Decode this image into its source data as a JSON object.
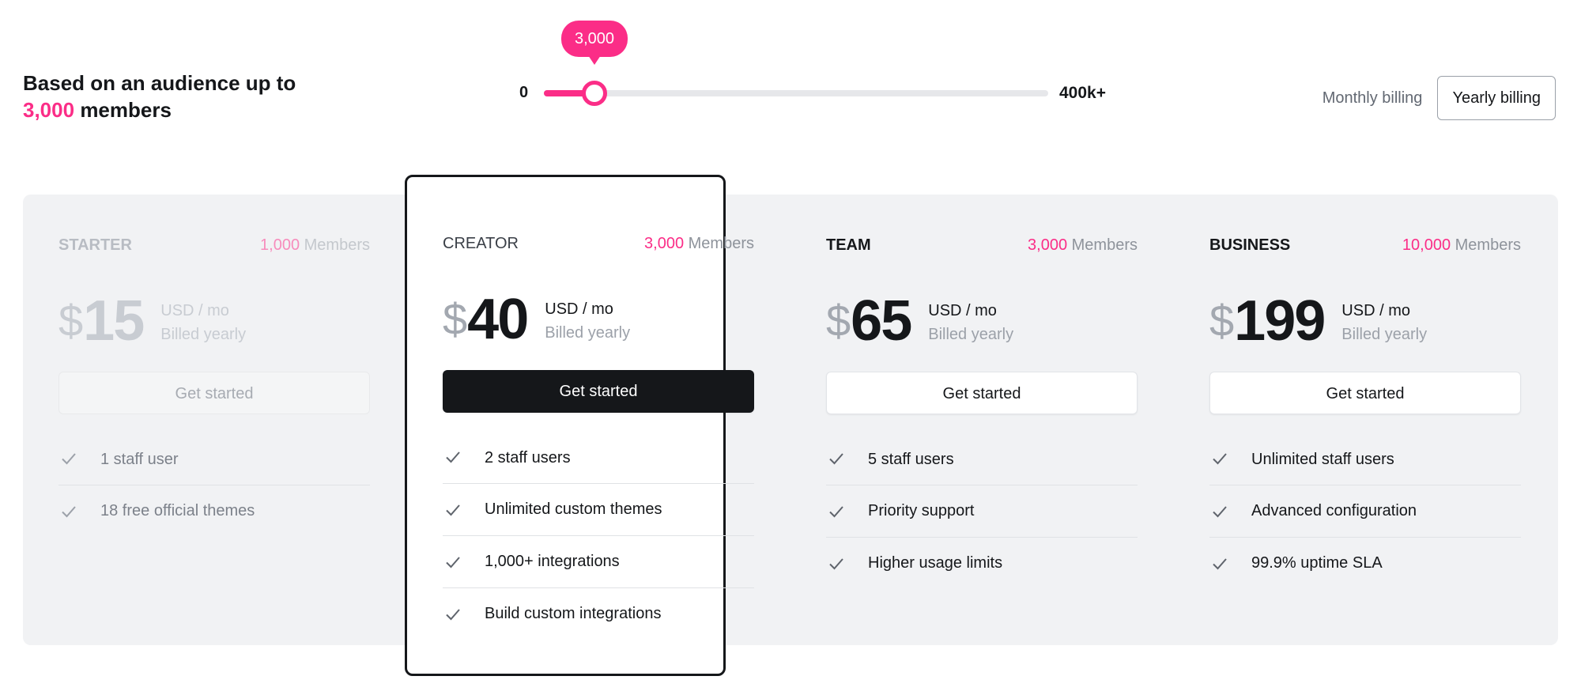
{
  "header": {
    "audience_text": "Based on an audience up to",
    "audience_value": "3,000",
    "audience_suffix": "members"
  },
  "slider": {
    "min_label": "0",
    "max_label": "400k+",
    "value_label": "3,000",
    "position_fraction": 0.1,
    "accent_color": "#fb2d87"
  },
  "billing": {
    "monthly_label": "Monthly billing",
    "yearly_label": "Yearly billing",
    "selected": "yearly"
  },
  "plans": [
    {
      "name": "STARTER",
      "members_count": "1,000",
      "members_label": "Members",
      "currency_symbol": "$",
      "price": "15",
      "unit": "USD / mo",
      "billing_note": "Billed yearly",
      "cta": "Get started",
      "features": [
        "1 staff user",
        "18 free official themes"
      ],
      "state": "disabled"
    },
    {
      "name": "CREATOR",
      "members_count": "3,000",
      "members_label": "Members",
      "currency_symbol": "$",
      "price": "40",
      "unit": "USD / mo",
      "billing_note": "Billed yearly",
      "cta": "Get started",
      "features": [
        "2 staff users",
        "Unlimited custom themes",
        "1,000+ integrations",
        "Build custom integrations"
      ],
      "state": "featured"
    },
    {
      "name": "TEAM",
      "members_count": "3,000",
      "members_label": "Members",
      "currency_symbol": "$",
      "price": "65",
      "unit": "USD / mo",
      "billing_note": "Billed yearly",
      "cta": "Get started",
      "features": [
        "5 staff users",
        "Priority support",
        "Higher usage limits"
      ],
      "state": "normal"
    },
    {
      "name": "BUSINESS",
      "members_count": "10,000",
      "members_label": "Members",
      "currency_symbol": "$",
      "price": "199",
      "unit": "USD / mo",
      "billing_note": "Billed yearly",
      "cta": "Get started",
      "features": [
        "Unlimited staff users",
        "Advanced configuration",
        "99.9% uptime SLA"
      ],
      "state": "normal"
    }
  ],
  "icons": {
    "feature_check": "check-icon"
  }
}
